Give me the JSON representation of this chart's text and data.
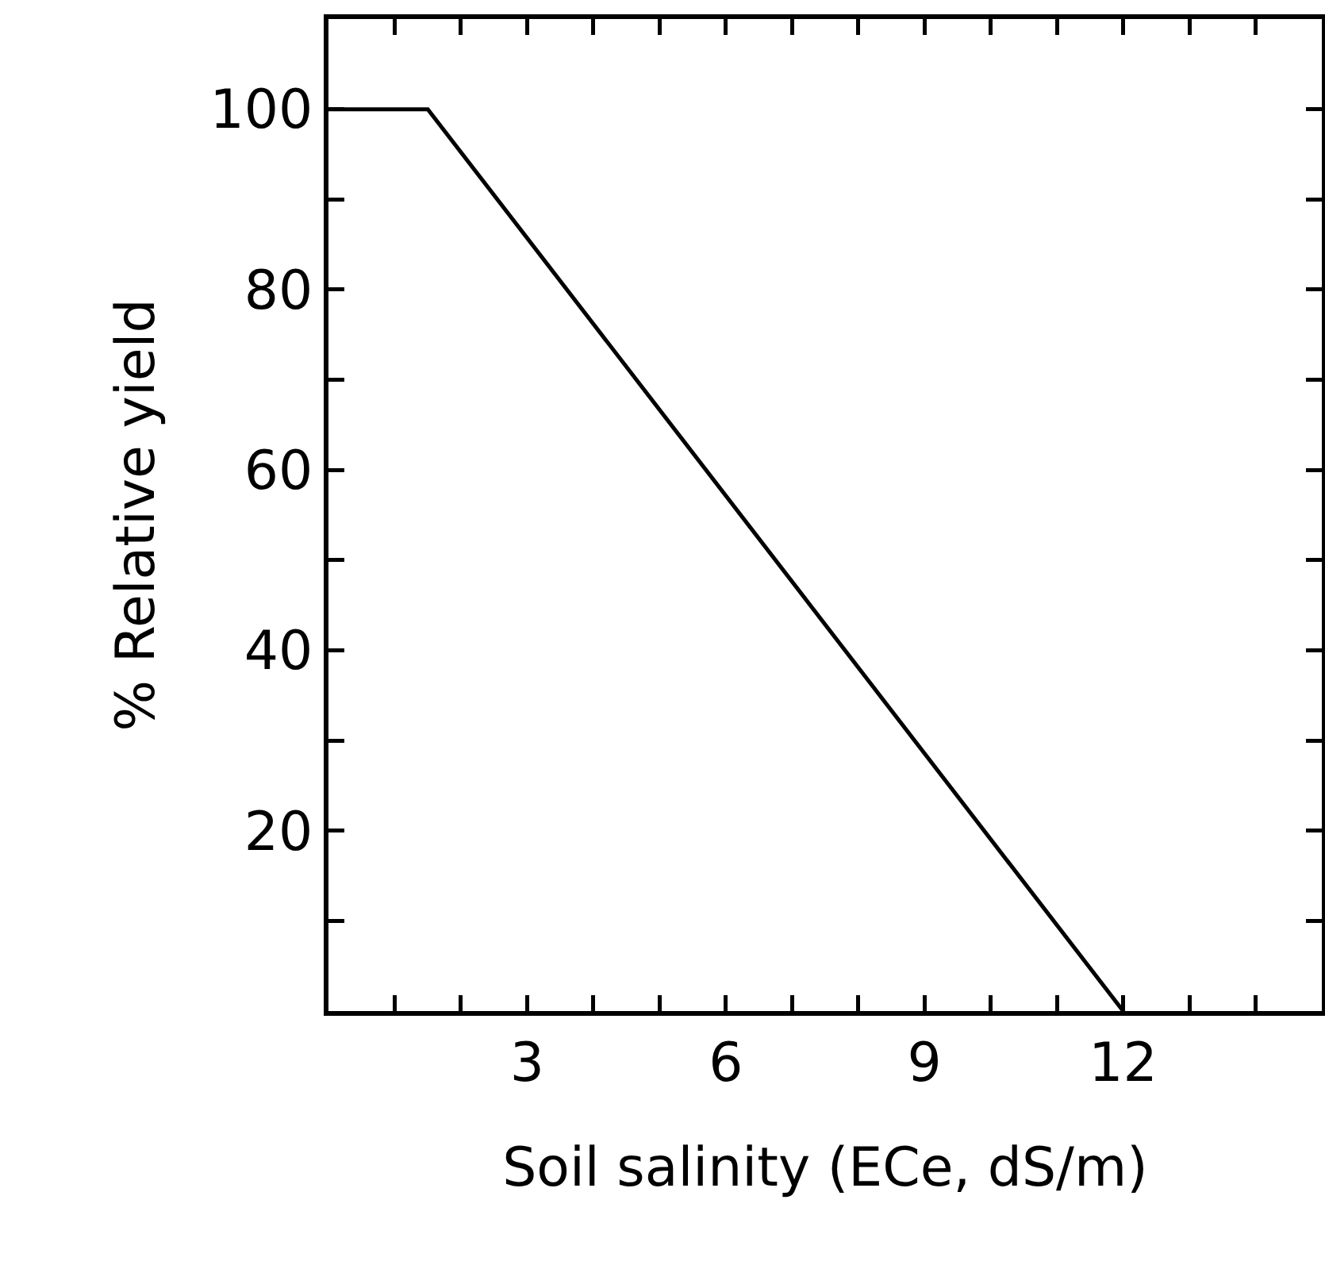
{
  "chart_data": {
    "type": "line",
    "xlabel": "Soil salinity (ECe, dS/m)",
    "ylabel": "% Relative yield",
    "x": [
      0,
      1.5,
      12
    ],
    "series": [
      {
        "color": "#000000",
        "values": [
          100,
          100,
          0
        ]
      }
    ],
    "xlim": [
      0,
      15
    ],
    "ylim": [
      0,
      110
    ],
    "xticks": [
      {
        "value": 1,
        "label": null
      },
      {
        "value": 2,
        "label": null
      },
      3,
      {
        "value": 4,
        "label": null
      },
      {
        "value": 5,
        "label": null
      },
      6,
      {
        "value": 7,
        "label": null
      },
      {
        "value": 8,
        "label": null
      },
      9,
      {
        "value": 10,
        "label": null
      },
      {
        "value": 11,
        "label": null
      },
      12,
      {
        "value": 13,
        "label": null
      },
      {
        "value": 14,
        "label": null
      }
    ],
    "yticks": [
      {
        "value": 10,
        "label": null
      },
      20,
      {
        "value": 30,
        "label": null
      },
      40,
      {
        "value": 50,
        "label": null
      },
      60,
      {
        "value": 70,
        "label": null
      },
      80,
      {
        "value": 90,
        "label": null
      },
      100
    ],
    "grid": false,
    "marker": "none",
    "line_style": "solid"
  }
}
